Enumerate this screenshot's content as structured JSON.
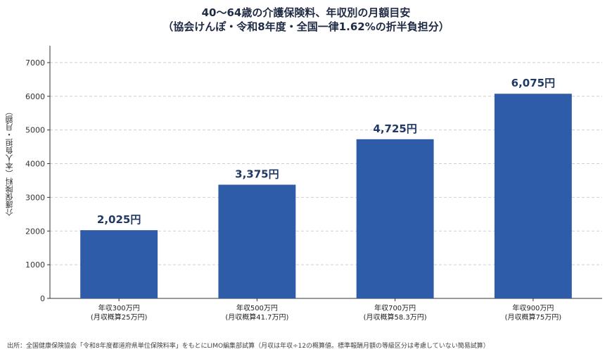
{
  "chart_data": {
    "type": "bar",
    "title_line1": "40〜64歳の介護保険料、年収別の月額目安",
    "title_line2": "（協会けんぽ・令和8年度・全国一律1.62%の折半負担分）",
    "ylabel": "介護保険料（本人負担・月額）",
    "xlabel": "",
    "categories": [
      [
        "年収300万円",
        "(月収概算25万円)"
      ],
      [
        "年収500万円",
        "(月収概算41.7万円)"
      ],
      [
        "年収700万円",
        "(月収概算58.3万円)"
      ],
      [
        "年収900万円",
        "(月収概算75万円)"
      ]
    ],
    "values": [
      2025,
      3375,
      4725,
      6075
    ],
    "value_labels": [
      "2,025円",
      "3,375円",
      "4,725円",
      "6,075円"
    ],
    "ylim": [
      0,
      7500
    ],
    "yticks": [
      0,
      1000,
      2000,
      3000,
      4000,
      5000,
      6000,
      7000
    ],
    "grid": true,
    "bar_color": "#2e5ca8",
    "source": "出所：全国健康保険協会「令和8年度都道府県単位保険料率」をもとにLIMO編集部試算（月収は年収÷12の概算値。標準報酬月額の等級区分は考慮していない簡易試算）"
  }
}
